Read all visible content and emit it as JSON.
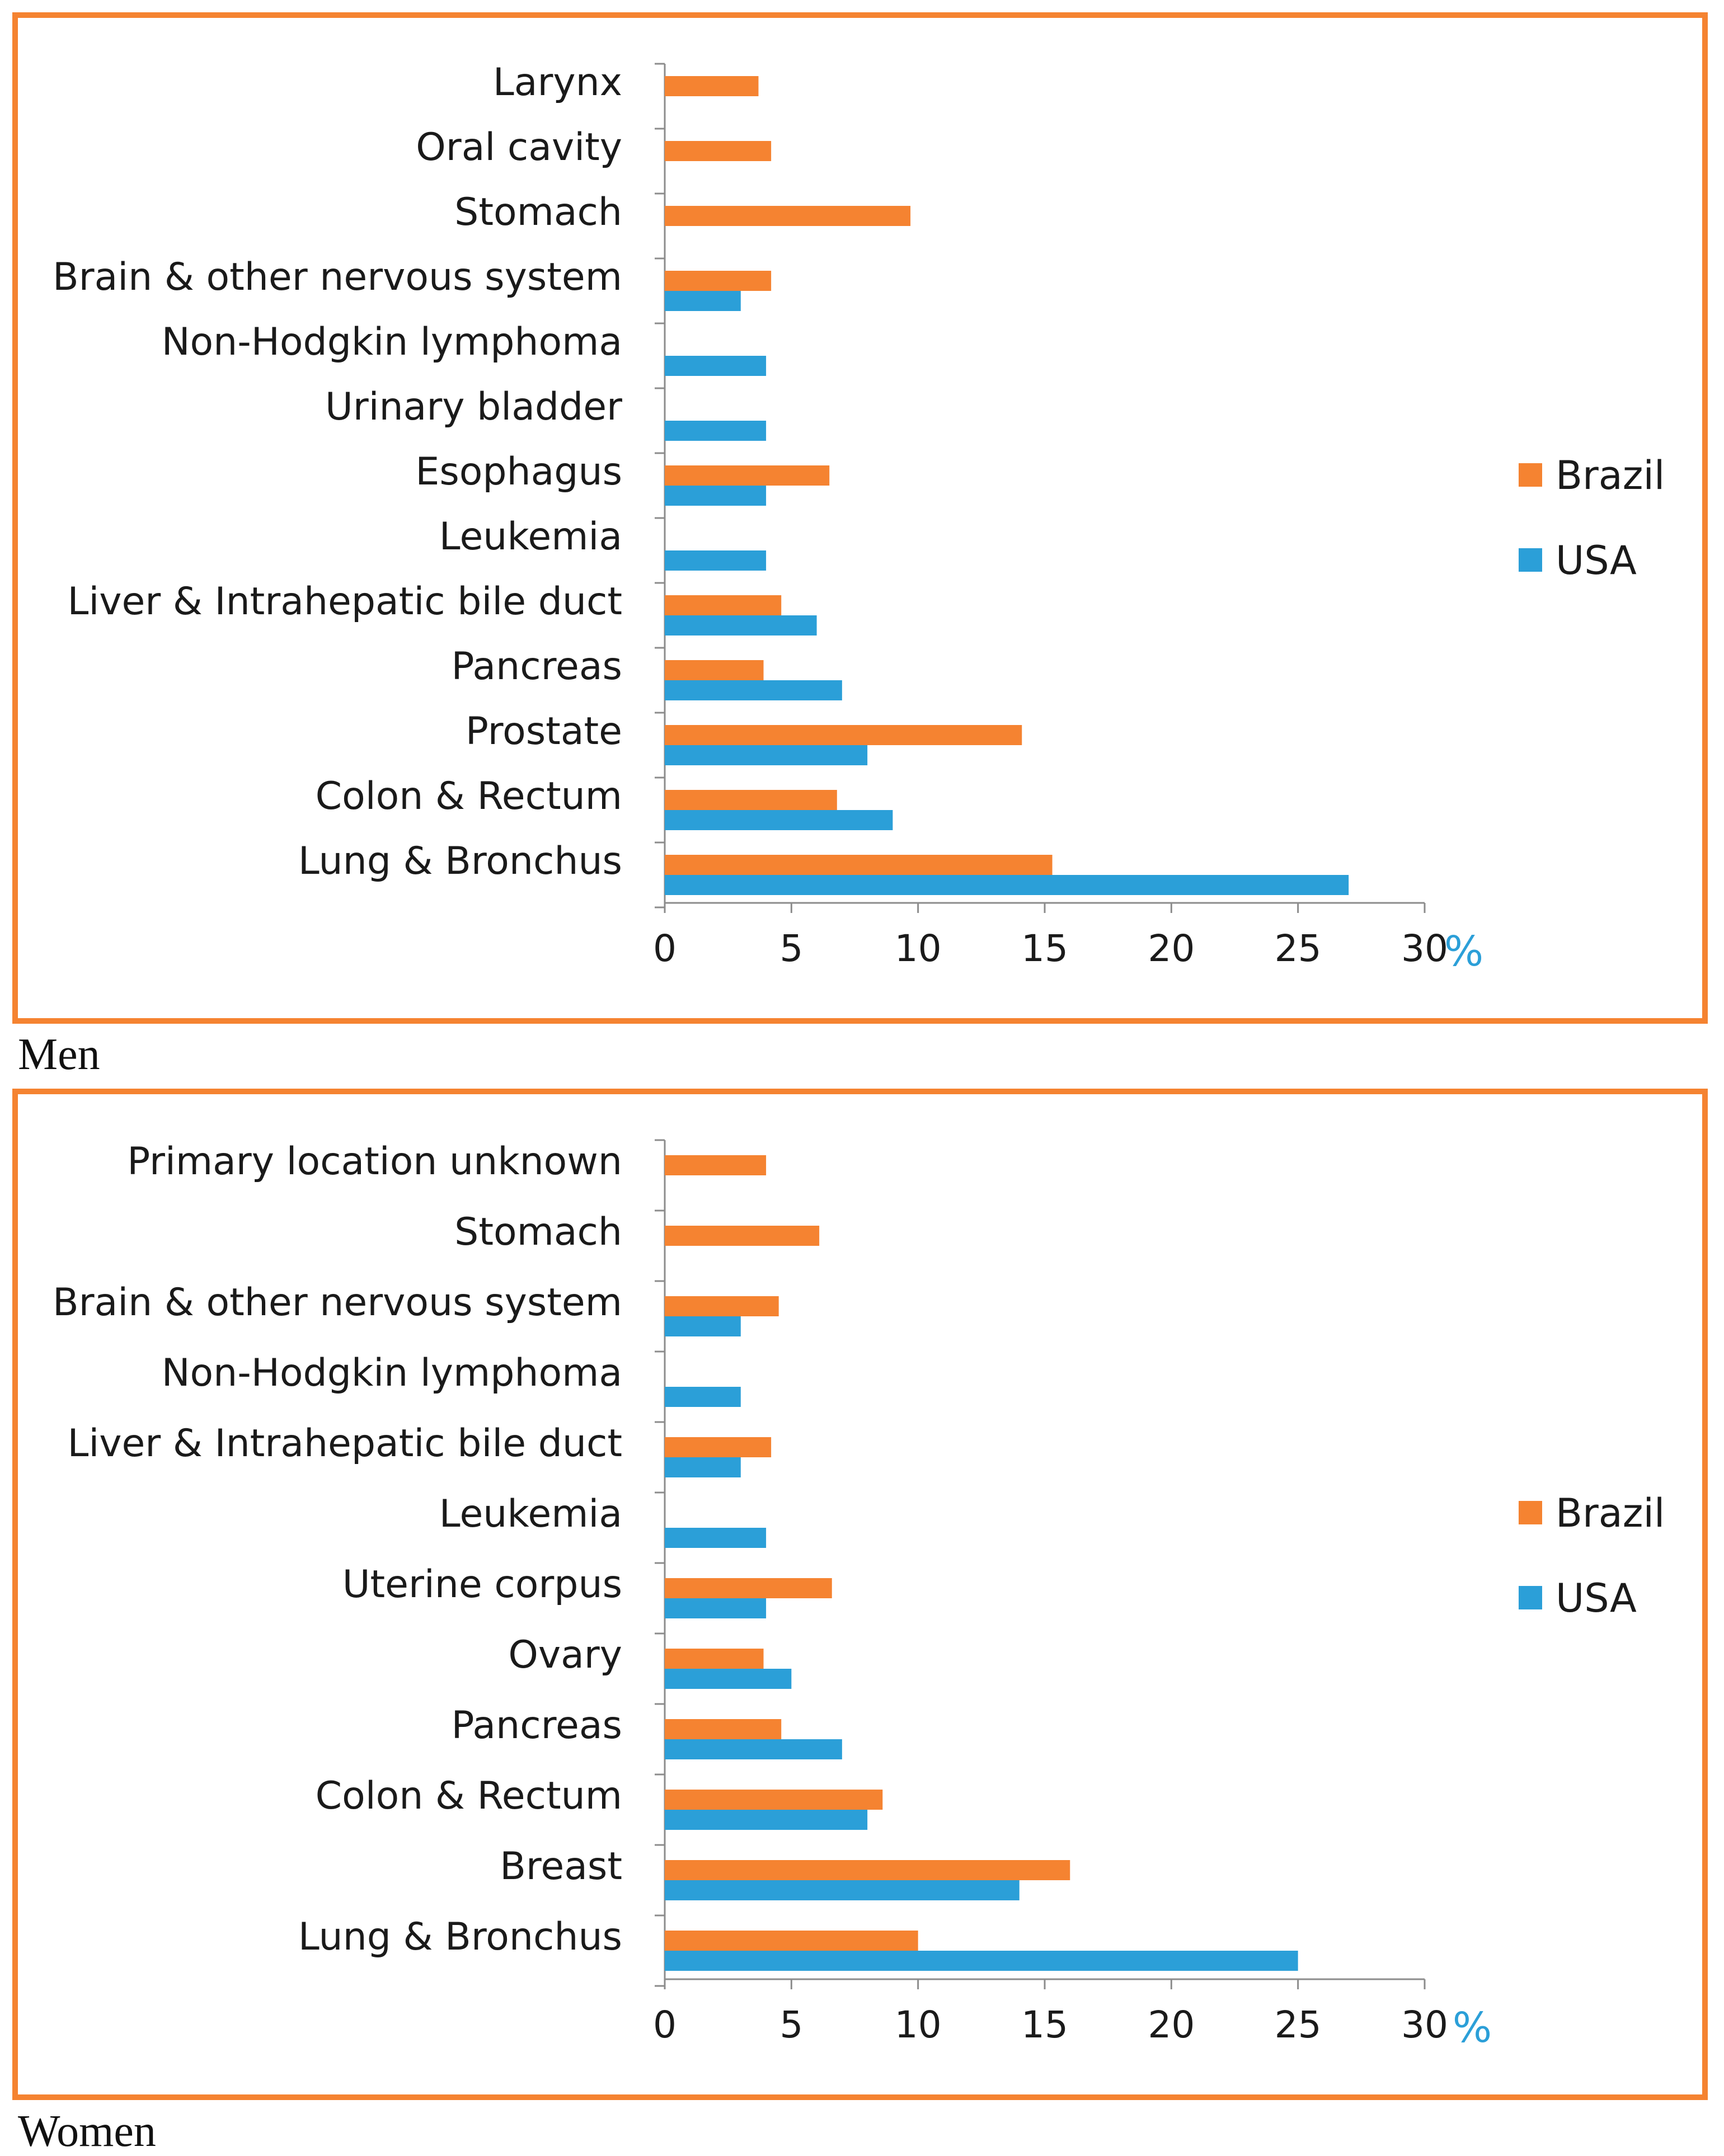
{
  "colors": {
    "brazil": "#f58331",
    "usa": "#2b9fd8",
    "frame": "#f58331",
    "unit": "#2b9fd8"
  },
  "chart_data": [
    {
      "type": "bar",
      "orientation": "horizontal",
      "caption": "Men",
      "categories": [
        "Larynx",
        "Oral cavity",
        "Stomach",
        "Brain & other nervous system",
        "Non-Hodgkin lymphoma",
        "Urinary bladder",
        "Esophagus",
        "Leukemia",
        "Liver & Intrahepatic bile duct",
        "Pancreas",
        "Prostate",
        "Colon & Rectum",
        "Lung & Bronchus"
      ],
      "series": [
        {
          "name": "Brazil",
          "values": [
            3.7,
            4.2,
            9.7,
            4.2,
            null,
            null,
            6.5,
            null,
            4.6,
            3.9,
            14.1,
            6.8,
            15.3
          ]
        },
        {
          "name": "USA",
          "values": [
            null,
            null,
            null,
            3.0,
            4.0,
            4.0,
            4.0,
            4.0,
            6.0,
            7.0,
            8.0,
            9.0,
            27.0
          ]
        }
      ],
      "xlim": [
        0,
        30
      ],
      "xticks": [
        "0",
        "5",
        "10",
        "15",
        "20",
        "25",
        "30"
      ],
      "xlabel": "%",
      "legend": [
        "Brazil",
        "USA"
      ],
      "legend_position": "right"
    },
    {
      "type": "bar",
      "orientation": "horizontal",
      "caption": "Women",
      "categories": [
        "Primary location unknown",
        "Stomach",
        "Brain & other nervous system",
        "Non-Hodgkin lymphoma",
        "Liver & Intrahepatic bile duct",
        "Leukemia",
        "Uterine corpus",
        "Ovary",
        "Pancreas",
        "Colon & Rectum",
        "Breast",
        "Lung & Bronchus"
      ],
      "series": [
        {
          "name": "Brazil",
          "values": [
            4.0,
            6.1,
            4.5,
            null,
            4.2,
            null,
            6.6,
            3.9,
            4.6,
            8.6,
            16.0,
            10.0
          ]
        },
        {
          "name": "USA",
          "values": [
            null,
            null,
            3.0,
            3.0,
            3.0,
            4.0,
            4.0,
            5.0,
            7.0,
            8.0,
            14.0,
            25.0
          ]
        }
      ],
      "xlim": [
        0,
        30
      ],
      "xticks": [
        "0",
        "5",
        "10",
        "15",
        "20",
        "25",
        "30"
      ],
      "xlabel": "%",
      "legend": [
        "Brazil",
        "USA"
      ],
      "legend_position": "right"
    }
  ]
}
